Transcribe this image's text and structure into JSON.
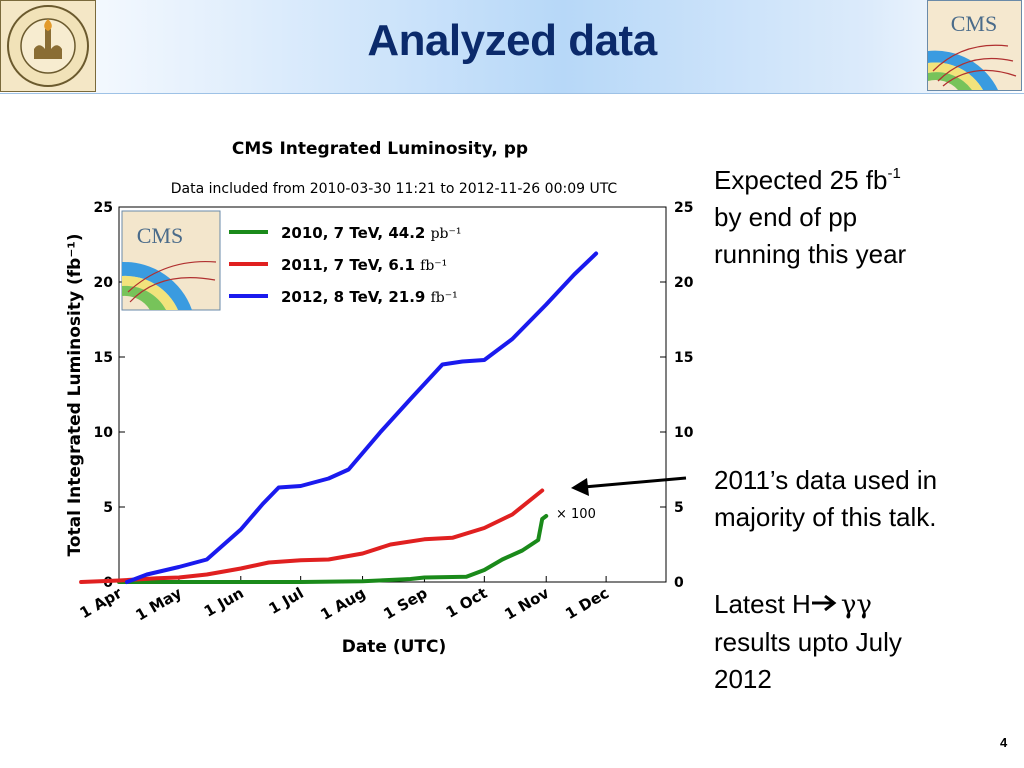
{
  "slide": {
    "title": "Analyzed data",
    "logo_left_text": "CALIFORNIA INSTITUTE OF TECHNOLOGY",
    "logo_left_year": "1891",
    "logo_right_text": "CMS",
    "expected_text": "Expected 25 fb",
    "expected_sup": "-1",
    "expected_line2": "by end of pp",
    "expected_line3": "running this year",
    "used_text": "2011’s data used in majority of this talk.",
    "latest_text_prefix": "Latest H",
    "latest_text_gg": "γγ",
    "latest_text_rest": "results upto July 2012",
    "page_number": "4"
  },
  "chart_data": {
    "type": "line",
    "title": "CMS Integrated Luminosity, pp",
    "subtitle": "Data included from 2010-03-30 11:21 to 2012-11-26 00:09 UTC",
    "xlabel": "Date (UTC)",
    "ylabel": "Total Integrated Luminosity (fb⁻¹)",
    "ylim": [
      0,
      25
    ],
    "yticks": [
      "0",
      "5",
      "10",
      "15",
      "20",
      "25"
    ],
    "x_range": [
      "1 Apr",
      "31 Dec"
    ],
    "xticks": [
      "1 Apr",
      "1 May",
      "1 Jun",
      "1 Jul",
      "1 Aug",
      "1 Sep",
      "1 Oct",
      "1 Nov",
      "1 Dec"
    ],
    "logo_text": "CMS",
    "annotation": "× 100",
    "legend_position": "top-left",
    "series": [
      {
        "name": "2010, 7 TeV, 44.2",
        "unit": "pb⁻¹",
        "color": "#1a8a1a",
        "x": [
          "2010-04-01",
          "2010-05-01",
          "2010-06-01",
          "2010-07-01",
          "2010-08-01",
          "2010-08-25",
          "2010-09-01",
          "2010-09-22",
          "2010-10-01",
          "2010-10-10",
          "2010-10-20",
          "2010-10-28",
          "2010-10-30",
          "2010-11-01"
        ],
        "values": [
          0.0,
          0.0,
          0.0,
          0.0,
          0.05,
          0.2,
          0.3,
          0.35,
          0.8,
          1.5,
          2.1,
          2.8,
          4.2,
          4.4
        ]
      },
      {
        "name": "2011, 7 TeV, 6.1",
        "unit": "fb⁻¹",
        "color": "#e02020",
        "x": [
          "2011-03-13",
          "2011-04-01",
          "2011-04-20",
          "2011-05-01",
          "2011-05-15",
          "2011-06-01",
          "2011-06-15",
          "2011-07-01",
          "2011-07-15",
          "2011-08-01",
          "2011-08-15",
          "2011-09-01",
          "2011-09-15",
          "2011-10-01",
          "2011-10-15",
          "2011-10-30"
        ],
        "values": [
          0.0,
          0.1,
          0.25,
          0.3,
          0.5,
          0.9,
          1.3,
          1.45,
          1.5,
          1.9,
          2.5,
          2.85,
          2.95,
          3.6,
          4.5,
          6.1
        ]
      },
      {
        "name": "2012, 8 TeV, 21.9",
        "unit": "fb⁻¹",
        "color": "#1a1aee",
        "x": [
          "2012-04-05",
          "2012-04-15",
          "2012-05-01",
          "2012-05-15",
          "2012-06-01",
          "2012-06-12",
          "2012-06-20",
          "2012-07-01",
          "2012-07-15",
          "2012-07-25",
          "2012-08-10",
          "2012-08-25",
          "2012-09-10",
          "2012-09-20",
          "2012-10-01",
          "2012-10-15",
          "2012-11-01",
          "2012-11-15",
          "2012-11-26"
        ],
        "values": [
          0.0,
          0.5,
          1.0,
          1.5,
          3.5,
          5.2,
          6.3,
          6.4,
          6.9,
          7.5,
          10.0,
          12.2,
          14.5,
          14.7,
          14.8,
          16.2,
          18.5,
          20.5,
          21.9
        ]
      }
    ]
  }
}
